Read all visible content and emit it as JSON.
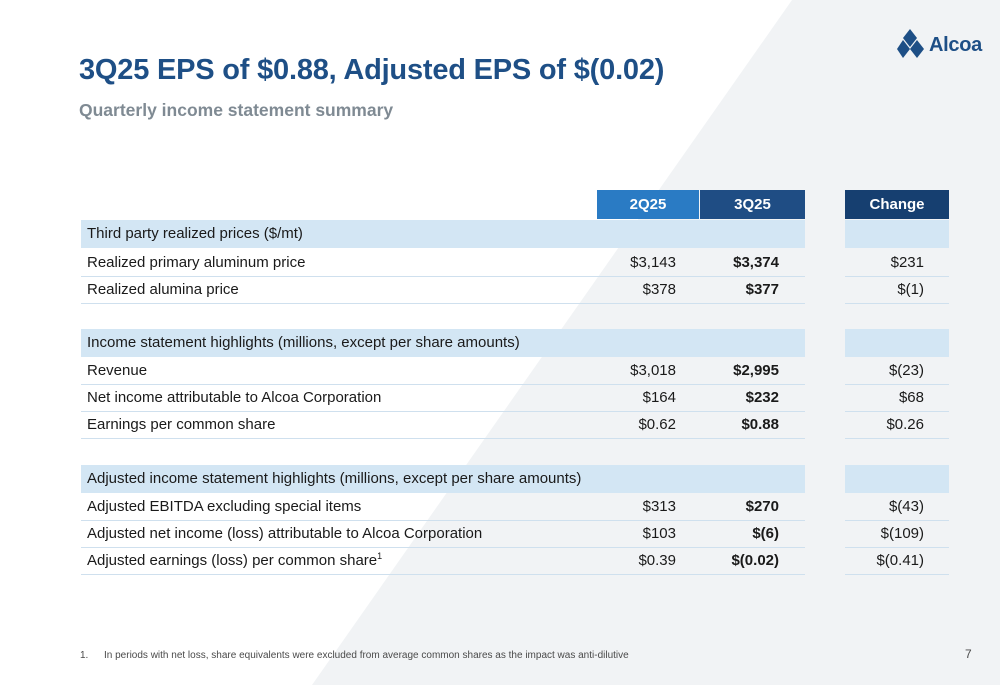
{
  "brand": {
    "name": "Alcoa",
    "color": "#1e4f86"
  },
  "title": "3Q25 EPS of $0.88, Adjusted EPS of $(0.02)",
  "subtitle": "Quarterly income statement summary",
  "table": {
    "headers": {
      "col1": "2Q25",
      "col2": "3Q25",
      "change": "Change"
    },
    "sections": [
      {
        "title": "Third party realized prices ($/mt)",
        "rows": [
          {
            "label": "Realized primary aluminum price",
            "q2": "$3,143",
            "q3": "$3,374",
            "change": "$231"
          },
          {
            "label": "Realized alumina price",
            "q2": "$378",
            "q3": "$377",
            "change": "$(1)"
          }
        ]
      },
      {
        "title": "Income statement highlights (millions, except per share amounts)",
        "rows": [
          {
            "label": "Revenue",
            "q2": "$3,018",
            "q3": "$2,995",
            "change": "$(23)"
          },
          {
            "label": "Net income attributable to Alcoa Corporation",
            "q2": "$164",
            "q3": "$232",
            "change": "$68"
          },
          {
            "label": "Earnings per common share",
            "q2": "$0.62",
            "q3": "$0.88",
            "change": "$0.26"
          }
        ]
      },
      {
        "title": "Adjusted income statement highlights (millions, except per share amounts)",
        "rows": [
          {
            "label": "Adjusted EBITDA excluding special items",
            "q2": "$313",
            "q3": "$270",
            "change": "$(43)"
          },
          {
            "label": "Adjusted net income (loss) attributable to Alcoa Corporation",
            "q2": "$103",
            "q3": "$(6)",
            "change": "$(109)"
          },
          {
            "label": "Adjusted earnings (loss) per common share",
            "sup": "1",
            "q2": "$0.39",
            "q3": "$(0.02)",
            "change": "$(0.41)"
          }
        ]
      }
    ]
  },
  "footnote": {
    "number": "1.",
    "text": "In periods with net loss, share equivalents were excluded from average common shares as the impact was anti-dilutive"
  },
  "page_number": "7"
}
